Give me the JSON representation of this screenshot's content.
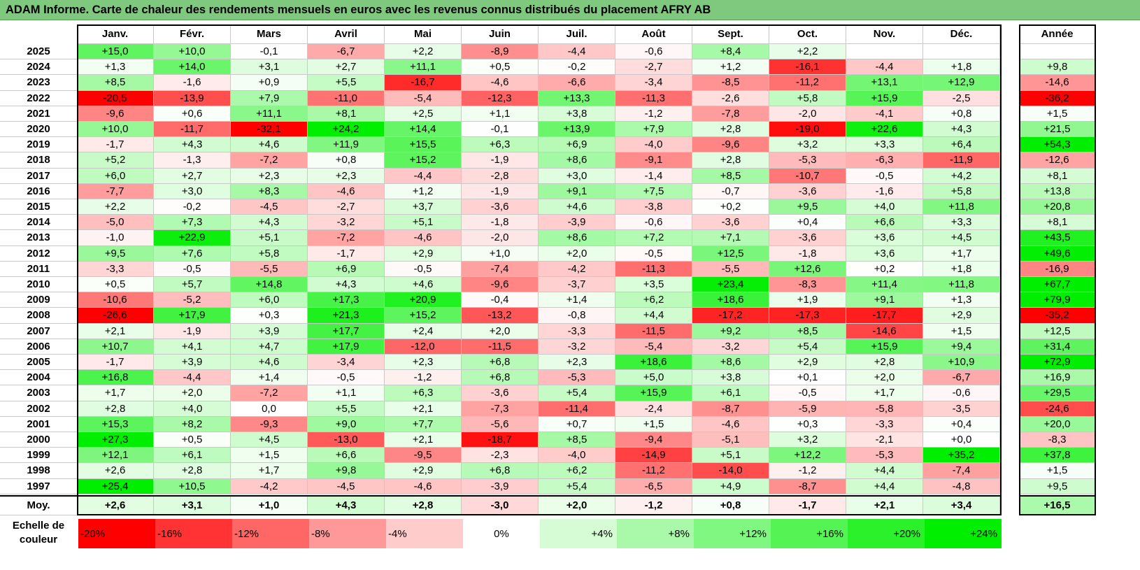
{
  "title": "ADAM Informe. Carte de chaleur des rendements mensuels en euros avec les revenus connus distribués du placement AFRY AB",
  "chart_data": {
    "type": "heatmap",
    "title": "ADAM Informe. Carte de chaleur des rendements mensuels en euros avec les revenus connus distribués du placement AFRY AB",
    "columns": [
      "Janv.",
      "Févr.",
      "Mars",
      "Avril",
      "Mai",
      "Juin",
      "Juil.",
      "Août",
      "Sept.",
      "Oct.",
      "Nov.",
      "Déc."
    ],
    "year_header": "Année",
    "rows": [
      {
        "year": "2025",
        "values": [
          "+15,0",
          "+10,0",
          "-0,1",
          "-6,7",
          "+2,2",
          "-8,9",
          "-4,4",
          "-0,6",
          "+8,4",
          "+2,2",
          "",
          ""
        ],
        "annual": ""
      },
      {
        "year": "2024",
        "values": [
          "+1,3",
          "+14,0",
          "+3,1",
          "+2,7",
          "+11,1",
          "+0,5",
          "-0,2",
          "-2,7",
          "+1,2",
          "-16,1",
          "-4,4",
          "+1,8"
        ],
        "annual": "+9,8"
      },
      {
        "year": "2023",
        "values": [
          "+8,5",
          "-1,6",
          "+0,9",
          "+5,5",
          "-16,7",
          "-4,6",
          "-6,6",
          "-3,4",
          "-8,5",
          "-11,2",
          "+13,1",
          "+12,9"
        ],
        "annual": "-14,6"
      },
      {
        "year": "2022",
        "values": [
          "-20,5",
          "-13,9",
          "+7,9",
          "-11,0",
          "-5,4",
          "-12,3",
          "+13,3",
          "-11,3",
          "-2,6",
          "+5,8",
          "+15,9",
          "-2,5"
        ],
        "annual": "-36,2"
      },
      {
        "year": "2021",
        "values": [
          "-9,6",
          "+0,6",
          "+11,1",
          "+8,1",
          "+2,5",
          "+1,1",
          "+3,8",
          "-1,2",
          "-7,8",
          "-2,0",
          "-4,1",
          "+0,8"
        ],
        "annual": "+1,5"
      },
      {
        "year": "2020",
        "values": [
          "+10,0",
          "-11,7",
          "-32,1",
          "+24,2",
          "+14,4",
          "-0,1",
          "+13,9",
          "+7,9",
          "+2,8",
          "-19,0",
          "+22,6",
          "+4,3"
        ],
        "annual": "+21,5"
      },
      {
        "year": "2019",
        "values": [
          "-1,7",
          "+4,3",
          "+4,6",
          "+11,9",
          "+15,5",
          "+6,3",
          "+6,9",
          "-4,0",
          "-9,6",
          "+3,2",
          "+3,3",
          "+6,4"
        ],
        "annual": "+54,3"
      },
      {
        "year": "2018",
        "values": [
          "+5,2",
          "-1,3",
          "-7,2",
          "+0,8",
          "+15,2",
          "-1,9",
          "+8,6",
          "-9,1",
          "+2,8",
          "-5,3",
          "-6,3",
          "-11,9"
        ],
        "annual": "-12,6"
      },
      {
        "year": "2017",
        "values": [
          "+6,0",
          "+2,7",
          "+2,3",
          "+2,3",
          "-4,4",
          "-2,8",
          "+3,0",
          "-1,4",
          "+8,5",
          "-10,7",
          "-0,5",
          "+4,2"
        ],
        "annual": "+8,1"
      },
      {
        "year": "2016",
        "values": [
          "-7,7",
          "+3,0",
          "+8,3",
          "-4,6",
          "+1,2",
          "-1,9",
          "+9,1",
          "+7,5",
          "-0,7",
          "-3,6",
          "-1,6",
          "+5,8"
        ],
        "annual": "+13,8"
      },
      {
        "year": "2015",
        "values": [
          "+2,2",
          "-0,2",
          "-4,5",
          "-2,7",
          "+3,7",
          "-3,6",
          "+4,6",
          "-3,8",
          "+0,2",
          "+9,5",
          "+4,0",
          "+11,8"
        ],
        "annual": "+20,8"
      },
      {
        "year": "2014",
        "values": [
          "-5,0",
          "+7,3",
          "+4,3",
          "-3,2",
          "+5,1",
          "-1,8",
          "-3,9",
          "-0,6",
          "-3,6",
          "+0,4",
          "+6,6",
          "+3,3"
        ],
        "annual": "+8,1"
      },
      {
        "year": "2013",
        "values": [
          "-1,0",
          "+22,9",
          "+5,1",
          "-7,2",
          "-4,6",
          "-2,0",
          "+8,6",
          "+7,2",
          "+7,1",
          "-3,6",
          "+3,6",
          "+4,5"
        ],
        "annual": "+43,5"
      },
      {
        "year": "2012",
        "values": [
          "+9,5",
          "+7,6",
          "+5,8",
          "-1,7",
          "+2,9",
          "+1,0",
          "+2,0",
          "-0,5",
          "+12,5",
          "-1,8",
          "+3,6",
          "+1,7"
        ],
        "annual": "+49,6"
      },
      {
        "year": "2011",
        "values": [
          "-3,3",
          "-0,5",
          "-5,5",
          "+6,9",
          "-0,5",
          "-7,4",
          "-4,2",
          "-11,3",
          "-5,5",
          "+12,6",
          "+0,2",
          "+1,8"
        ],
        "annual": "-16,9"
      },
      {
        "year": "2010",
        "values": [
          "+0,5",
          "+5,7",
          "+14,8",
          "+4,3",
          "+4,6",
          "-9,6",
          "-3,7",
          "+3,5",
          "+23,4",
          "-8,3",
          "+11,4",
          "+11,8"
        ],
        "annual": "+67,7"
      },
      {
        "year": "2009",
        "values": [
          "-10,6",
          "-5,2",
          "+6,0",
          "+17,3",
          "+20,9",
          "-0,4",
          "+1,4",
          "+6,2",
          "+18,6",
          "+1,9",
          "+9,1",
          "+1,3"
        ],
        "annual": "+79,9"
      },
      {
        "year": "2008",
        "values": [
          "-26,6",
          "+17,9",
          "+0,3",
          "+21,3",
          "+15,2",
          "-13,2",
          "-0,8",
          "+4,4",
          "-17,2",
          "-17,3",
          "-17,7",
          "+2,9"
        ],
        "annual": "-35,2"
      },
      {
        "year": "2007",
        "values": [
          "+2,1",
          "-1,9",
          "+3,9",
          "+17,7",
          "+2,4",
          "+2,0",
          "-3,3",
          "-11,5",
          "+9,2",
          "+8,5",
          "-14,6",
          "+1,5"
        ],
        "annual": "+12,5"
      },
      {
        "year": "2006",
        "values": [
          "+10,7",
          "+4,1",
          "+4,7",
          "+17,9",
          "-12,0",
          "-11,5",
          "-3,2",
          "-5,4",
          "-3,2",
          "+5,4",
          "+15,9",
          "+9,4"
        ],
        "annual": "+31,4"
      },
      {
        "year": "2005",
        "values": [
          "-1,7",
          "+3,9",
          "+4,6",
          "-3,4",
          "+2,3",
          "+6,8",
          "+2,3",
          "+18,6",
          "+8,6",
          "+2,9",
          "+2,8",
          "+10,9"
        ],
        "annual": "+72,9"
      },
      {
        "year": "2004",
        "values": [
          "+16,8",
          "-4,4",
          "+1,4",
          "-0,5",
          "-1,2",
          "+6,8",
          "-5,3",
          "+5,0",
          "+3,8",
          "+0,1",
          "+2,0",
          "-6,7"
        ],
        "annual": "+16,9"
      },
      {
        "year": "2003",
        "values": [
          "+1,7",
          "+2,0",
          "-7,2",
          "+1,1",
          "+6,3",
          "-3,6",
          "+5,4",
          "+15,9",
          "+6,1",
          "-0,5",
          "+1,7",
          "-0,6"
        ],
        "annual": "+29,5"
      },
      {
        "year": "2002",
        "values": [
          "+2,8",
          "+4,0",
          "0,0",
          "+5,5",
          "+2,1",
          "-7,3",
          "-11,4",
          "-2,4",
          "-8,7",
          "-5,9",
          "-5,8",
          "-3,5"
        ],
        "annual": "-24,6"
      },
      {
        "year": "2001",
        "values": [
          "+15,3",
          "+8,2",
          "-9,3",
          "+9,0",
          "+7,7",
          "-5,6",
          "+0,7",
          "+1,5",
          "-4,6",
          "+0,3",
          "-3,3",
          "+0,4"
        ],
        "annual": "+20,0"
      },
      {
        "year": "2000",
        "values": [
          "+27,3",
          "+0,5",
          "+4,5",
          "-13,0",
          "+2,1",
          "-18,7",
          "+8,5",
          "-9,4",
          "-5,1",
          "+3,2",
          "-2,1",
          "+0,0"
        ],
        "annual": "-8,3"
      },
      {
        "year": "1999",
        "values": [
          "+12,1",
          "+6,1",
          "+1,5",
          "+6,6",
          "-9,5",
          "-2,3",
          "-4,0",
          "-14,9",
          "+5,1",
          "+12,2",
          "-5,3",
          "+35,2"
        ],
        "annual": "+37,8"
      },
      {
        "year": "1998",
        "values": [
          "+2,6",
          "+2,8",
          "+1,7",
          "+9,8",
          "+2,9",
          "+6,8",
          "+6,2",
          "-11,2",
          "-14,0",
          "-1,2",
          "+4,4",
          "-7,4"
        ],
        "annual": "+1,5"
      },
      {
        "year": "1997",
        "values": [
          "+25,4",
          "+10,5",
          "-4,2",
          "-4,5",
          "-4,6",
          "-3,9",
          "+5,4",
          "-6,5",
          "+4,9",
          "-8,7",
          "+4,4",
          "-4,8"
        ],
        "annual": "+9,5"
      }
    ],
    "average": {
      "label": "Moy.",
      "values": [
        "+2,6",
        "+3,1",
        "+1,0",
        "+4,3",
        "+2,8",
        "-3,0",
        "+2,0",
        "-1,2",
        "+0,8",
        "-1,7",
        "+2,1",
        "+3,4"
      ],
      "annual": "+16,5"
    },
    "scale": {
      "label": "Echelle de couleur",
      "steps": [
        {
          "label": "-20%",
          "value": -20
        },
        {
          "label": "-16%",
          "value": -16
        },
        {
          "label": "-12%",
          "value": -12
        },
        {
          "label": "-8%",
          "value": -8
        },
        {
          "label": "-4%",
          "value": -4
        },
        {
          "label": "0%",
          "value": 0
        },
        {
          "label": "+4%",
          "value": 4
        },
        {
          "label": "+8%",
          "value": 8
        },
        {
          "label": "+12%",
          "value": 12
        },
        {
          "label": "+16%",
          "value": 16
        },
        {
          "label": "+20%",
          "value": 20
        },
        {
          "label": "+24%",
          "value": 24
        }
      ]
    },
    "colors": {
      "negative_max": "#ff0000",
      "neutral": "#ffffff",
      "positive_max": "#00ee00"
    }
  }
}
